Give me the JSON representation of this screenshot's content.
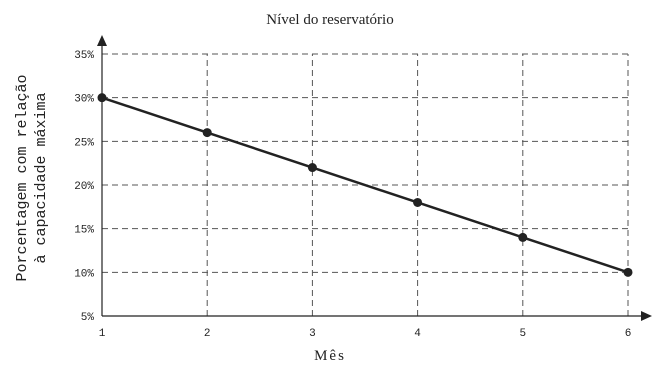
{
  "chart_data": {
    "type": "line",
    "title": "Nível do reservatório",
    "xlabel": "Mês",
    "ylabel": [
      "Porcentagem com relação",
      "à capacidade máxima"
    ],
    "x": [
      1,
      2,
      3,
      4,
      5,
      6
    ],
    "x_tick_labels": [
      "1",
      "2",
      "3",
      "4",
      "5",
      "6"
    ],
    "y_tick_labels": [
      "5%",
      "10%",
      "15%",
      "20%",
      "25%",
      "30%",
      "35%"
    ],
    "y_ticks": [
      5,
      10,
      15,
      20,
      25,
      30,
      35
    ],
    "xlim": [
      1,
      6
    ],
    "ylim": [
      5,
      35
    ],
    "grid": true,
    "grid_style": "dashed",
    "series": [
      {
        "values": [
          30,
          26,
          22,
          18,
          14,
          10
        ],
        "color": "#222222"
      }
    ]
  }
}
